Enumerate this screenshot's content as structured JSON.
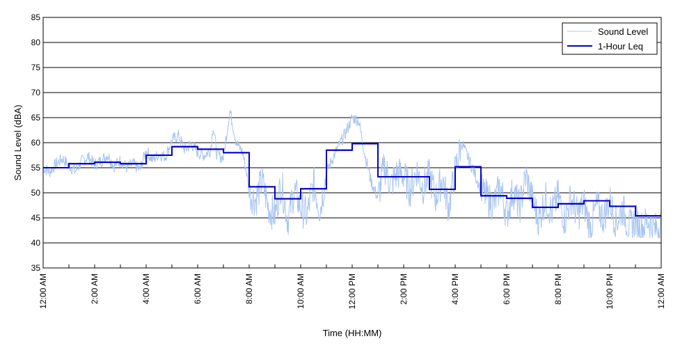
{
  "chart_data": {
    "type": "line",
    "title": "",
    "xlabel": "Time (HH:MM)",
    "ylabel": "Sound Level (dBA)",
    "xlim": [
      0,
      24
    ],
    "ylim": [
      35,
      85
    ],
    "x_unit": "hours since 12:00 AM",
    "yticks": [
      35,
      40,
      45,
      50,
      55,
      60,
      65,
      70,
      75,
      80,
      85
    ],
    "xticks": [
      {
        "x": 0,
        "label": "12:00 AM"
      },
      {
        "x": 2,
        "label": "2:00 AM"
      },
      {
        "x": 4,
        "label": "4:00 AM"
      },
      {
        "x": 6,
        "label": "6:00 AM"
      },
      {
        "x": 8,
        "label": "8:00 AM"
      },
      {
        "x": 10,
        "label": "10:00 AM"
      },
      {
        "x": 12,
        "label": "12:00 PM"
      },
      {
        "x": 14,
        "label": "2:00 PM"
      },
      {
        "x": 16,
        "label": "4:00 PM"
      },
      {
        "x": 18,
        "label": "6:00 PM"
      },
      {
        "x": 20,
        "label": "8:00 PM"
      },
      {
        "x": 22,
        "label": "10:00 PM"
      },
      {
        "x": 24,
        "label": "12:00 AM"
      }
    ],
    "grid": "horizontal",
    "legend_position": "top-right",
    "series": [
      {
        "name": "Sound Level",
        "color": "#a8c4f0",
        "style": "thin line, high-frequency variation",
        "points": [
          [
            0.0,
            55.0
          ],
          [
            0.25,
            54.2
          ],
          [
            0.5,
            55.8
          ],
          [
            0.75,
            56.8
          ],
          [
            1.0,
            55.5
          ],
          [
            1.25,
            54.3
          ],
          [
            1.5,
            56.3
          ],
          [
            1.75,
            57.2
          ],
          [
            2.0,
            55.6
          ],
          [
            2.25,
            56.4
          ],
          [
            2.5,
            57.6
          ],
          [
            2.75,
            55.3
          ],
          [
            3.0,
            56.5
          ],
          [
            3.25,
            55.0
          ],
          [
            3.5,
            55.8
          ],
          [
            3.75,
            54.5
          ],
          [
            4.0,
            58.5
          ],
          [
            4.25,
            56.5
          ],
          [
            4.5,
            57.8
          ],
          [
            4.75,
            57.2
          ],
          [
            5.0,
            60.5
          ],
          [
            5.25,
            61.5
          ],
          [
            5.5,
            58.5
          ],
          [
            5.75,
            59.8
          ],
          [
            6.0,
            58.0
          ],
          [
            6.25,
            57.5
          ],
          [
            6.5,
            58.5
          ],
          [
            6.6,
            63.5
          ],
          [
            6.75,
            57.5
          ],
          [
            7.0,
            57.0
          ],
          [
            7.25,
            66.5
          ],
          [
            7.5,
            60.0
          ],
          [
            7.75,
            58.0
          ],
          [
            7.9,
            54.0
          ],
          [
            8.0,
            50.0
          ],
          [
            8.25,
            48.5
          ],
          [
            8.5,
            52.5
          ],
          [
            8.75,
            47.0
          ],
          [
            9.0,
            45.5
          ],
          [
            9.25,
            52.0
          ],
          [
            9.5,
            44.5
          ],
          [
            9.75,
            50.5
          ],
          [
            10.0,
            47.0
          ],
          [
            10.25,
            45.5
          ],
          [
            10.5,
            52.0
          ],
          [
            10.75,
            46.5
          ],
          [
            11.0,
            54.0
          ],
          [
            11.25,
            57.0
          ],
          [
            11.5,
            59.5
          ],
          [
            11.75,
            62.0
          ],
          [
            12.0,
            65.0
          ],
          [
            12.25,
            64.5
          ],
          [
            12.5,
            57.5
          ],
          [
            12.75,
            52.0
          ],
          [
            13.0,
            49.0
          ],
          [
            13.25,
            55.5
          ],
          [
            13.5,
            51.5
          ],
          [
            13.75,
            54.0
          ],
          [
            14.0,
            53.5
          ],
          [
            14.25,
            50.5
          ],
          [
            14.5,
            54.5
          ],
          [
            14.75,
            51.0
          ],
          [
            15.0,
            53.5
          ],
          [
            15.25,
            49.0
          ],
          [
            15.5,
            53.0
          ],
          [
            15.75,
            47.0
          ],
          [
            16.0,
            54.5
          ],
          [
            16.25,
            60.0
          ],
          [
            16.5,
            57.0
          ],
          [
            16.75,
            54.0
          ],
          [
            17.0,
            50.5
          ],
          [
            17.25,
            49.0
          ],
          [
            17.5,
            47.5
          ],
          [
            17.75,
            51.5
          ],
          [
            18.0,
            45.5
          ],
          [
            18.25,
            50.5
          ],
          [
            18.5,
            47.0
          ],
          [
            18.75,
            53.5
          ],
          [
            19.0,
            48.5
          ],
          [
            19.25,
            44.5
          ],
          [
            19.5,
            49.0
          ],
          [
            19.75,
            46.0
          ],
          [
            20.0,
            49.5
          ],
          [
            20.25,
            44.5
          ],
          [
            20.5,
            49.0
          ],
          [
            20.75,
            45.5
          ],
          [
            21.0,
            48.0
          ],
          [
            21.25,
            43.0
          ],
          [
            21.5,
            47.5
          ],
          [
            21.75,
            45.0
          ],
          [
            22.0,
            48.5
          ],
          [
            22.25,
            44.0
          ],
          [
            22.5,
            47.0
          ],
          [
            22.75,
            43.0
          ],
          [
            23.0,
            44.5
          ],
          [
            23.25,
            43.0
          ],
          [
            23.5,
            44.5
          ],
          [
            23.75,
            42.5
          ],
          [
            24.0,
            44.0
          ]
        ]
      },
      {
        "name": "1-Hour Leq",
        "color": "#0000cc",
        "style": "thick step line",
        "hour_starts": [
          0,
          1,
          2,
          3,
          4,
          5,
          6,
          7,
          8,
          9,
          10,
          11,
          12,
          13,
          14,
          15,
          16,
          17,
          18,
          19,
          20,
          21,
          22,
          23
        ],
        "values": [
          55.0,
          55.8,
          56.1,
          55.8,
          57.5,
          59.2,
          58.7,
          58.0,
          51.2,
          48.8,
          50.8,
          58.5,
          59.8,
          53.2,
          53.2,
          50.7,
          55.2,
          49.4,
          48.9,
          47.1,
          47.8,
          48.4,
          47.3,
          45.4
        ]
      }
    ]
  }
}
